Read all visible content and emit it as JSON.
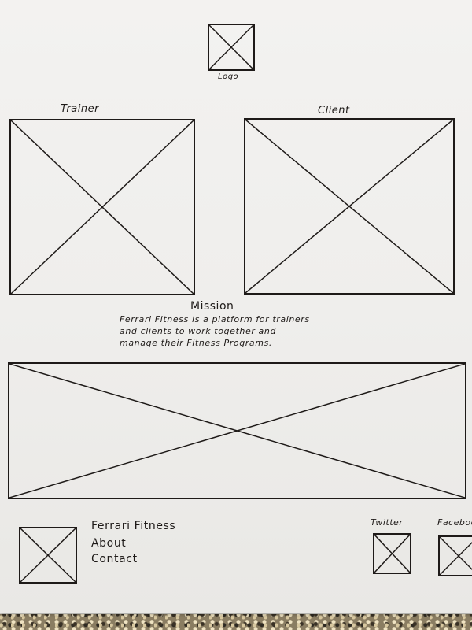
{
  "header": {
    "logo_label": "Logo"
  },
  "cards": {
    "trainer_label": "Trainer",
    "client_label": "Client"
  },
  "mission": {
    "heading": "Mission",
    "lines": [
      "Ferrari Fitness is a platform for trainers",
      "and clients to work together and",
      "manage their Fitness Programs."
    ]
  },
  "footer": {
    "links": [
      "Ferrari Fitness",
      "About",
      "Contact"
    ],
    "twitter_label": "Twitter",
    "facebook_label": "Facebook"
  }
}
